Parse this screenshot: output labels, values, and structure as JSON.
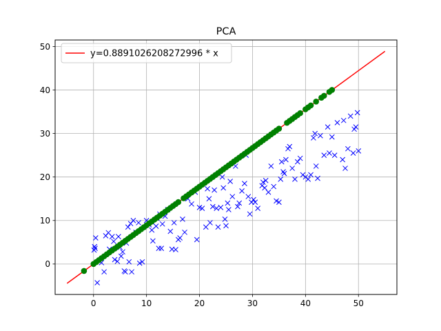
{
  "chart_data": {
    "type": "scatter",
    "title": "PCA",
    "xlabel": "",
    "ylabel": "",
    "xlim": [
      -7.25,
      57.25
    ],
    "ylim": [
      -7.0,
      51.5
    ],
    "xticks": [
      0,
      10,
      20,
      30,
      40,
      50
    ],
    "yticks": [
      0,
      10,
      20,
      30,
      40,
      50
    ],
    "grid": true,
    "legend_position": "top-left",
    "series": [
      {
        "name": "y=0.8891026208272996 * x",
        "kind": "line",
        "color": "#ff0000",
        "x": [
          -5,
          55
        ],
        "y": [
          -4.45,
          48.9
        ]
      },
      {
        "name": "",
        "kind": "scatter",
        "marker": "x",
        "color": "#0000ff",
        "points": [
          [
            0.1,
            3.2
          ],
          [
            0.2,
            4.0
          ],
          [
            0.3,
            3.6
          ],
          [
            0.4,
            6.0
          ],
          [
            0.7,
            -4.3
          ],
          [
            1.5,
            0.3
          ],
          [
            2.0,
            -1.8
          ],
          [
            2.3,
            6.5
          ],
          [
            2.8,
            7.2
          ],
          [
            3.0,
            3.4
          ],
          [
            3.5,
            6.3
          ],
          [
            3.8,
            5.2
          ],
          [
            4.0,
            1.0
          ],
          [
            4.5,
            0.6
          ],
          [
            4.7,
            6.3
          ],
          [
            5.0,
            3.8
          ],
          [
            5.2,
            1.8
          ],
          [
            5.5,
            2.8
          ],
          [
            5.8,
            -1.6
          ],
          [
            6.0,
            -1.8
          ],
          [
            6.2,
            4.8
          ],
          [
            6.5,
            8.5
          ],
          [
            6.7,
            0.5
          ],
          [
            7.0,
            9.3
          ],
          [
            7.2,
            -1.8
          ],
          [
            7.5,
            10.0
          ],
          [
            8.0,
            7.3
          ],
          [
            8.5,
            9.5
          ],
          [
            8.7,
            0.2
          ],
          [
            9.2,
            0.5
          ],
          [
            10.0,
            10.0
          ],
          [
            10.5,
            9.0
          ],
          [
            11.0,
            7.8
          ],
          [
            11.2,
            5.3
          ],
          [
            11.8,
            8.7
          ],
          [
            12.0,
            10.5
          ],
          [
            12.3,
            3.6
          ],
          [
            12.5,
            11.5
          ],
          [
            12.8,
            3.6
          ],
          [
            13.0,
            9.2
          ],
          [
            13.5,
            11.0
          ],
          [
            14.0,
            12.5
          ],
          [
            14.5,
            7.5
          ],
          [
            14.8,
            3.4
          ],
          [
            15.2,
            9.5
          ],
          [
            15.5,
            3.3
          ],
          [
            16.0,
            5.6
          ],
          [
            16.3,
            6.0
          ],
          [
            16.8,
            10.3
          ],
          [
            17.2,
            7.3
          ],
          [
            17.8,
            15.0
          ],
          [
            18.5,
            13.8
          ],
          [
            19.2,
            16.5
          ],
          [
            19.5,
            5.6
          ],
          [
            20.0,
            13.0
          ],
          [
            20.5,
            12.8
          ],
          [
            21.2,
            8.5
          ],
          [
            21.5,
            17.3
          ],
          [
            21.8,
            15.0
          ],
          [
            22.0,
            9.5
          ],
          [
            22.5,
            13.2
          ],
          [
            22.8,
            17.0
          ],
          [
            23.2,
            12.8
          ],
          [
            23.5,
            8.5
          ],
          [
            24.0,
            13.0
          ],
          [
            24.3,
            20.0
          ],
          [
            24.5,
            17.5
          ],
          [
            24.8,
            10.3
          ],
          [
            25.0,
            8.8
          ],
          [
            25.3,
            14.0
          ],
          [
            25.5,
            12.5
          ],
          [
            25.8,
            19.0
          ],
          [
            26.2,
            15.5
          ],
          [
            26.8,
            22.5
          ],
          [
            27.2,
            13.2
          ],
          [
            27.5,
            14.0
          ],
          [
            28.0,
            16.8
          ],
          [
            28.5,
            18.5
          ],
          [
            28.8,
            25.0
          ],
          [
            29.2,
            15.5
          ],
          [
            29.5,
            11.5
          ],
          [
            29.8,
            14.2
          ],
          [
            30.2,
            14.8
          ],
          [
            30.5,
            14.2
          ],
          [
            31.0,
            12.8
          ],
          [
            31.8,
            18.0
          ],
          [
            32.0,
            18.8
          ],
          [
            32.3,
            17.5
          ],
          [
            32.5,
            19.2
          ],
          [
            33.0,
            16.5
          ],
          [
            33.5,
            22.5
          ],
          [
            34.0,
            17.8
          ],
          [
            34.5,
            14.5
          ],
          [
            35.0,
            14.2
          ],
          [
            35.3,
            19.5
          ],
          [
            35.5,
            23.5
          ],
          [
            35.8,
            21.2
          ],
          [
            36.0,
            20.8
          ],
          [
            36.3,
            24.0
          ],
          [
            36.7,
            26.5
          ],
          [
            37.0,
            27.0
          ],
          [
            37.5,
            22.0
          ],
          [
            38.0,
            19.5
          ],
          [
            38.5,
            23.5
          ],
          [
            39.0,
            24.3
          ],
          [
            39.5,
            20.5
          ],
          [
            40.0,
            20.0
          ],
          [
            40.5,
            19.5
          ],
          [
            41.0,
            20.5
          ],
          [
            41.5,
            29.0
          ],
          [
            41.8,
            30.0
          ],
          [
            42.0,
            22.5
          ],
          [
            42.3,
            19.7
          ],
          [
            42.8,
            29.5
          ],
          [
            43.5,
            25.0
          ],
          [
            44.2,
            31.5
          ],
          [
            44.5,
            25.5
          ],
          [
            45.0,
            29.2
          ],
          [
            45.5,
            25.0
          ],
          [
            46.0,
            32.5
          ],
          [
            47.0,
            24.0
          ],
          [
            47.2,
            33.0
          ],
          [
            47.5,
            22.0
          ],
          [
            48.0,
            26.5
          ],
          [
            48.5,
            34.0
          ],
          [
            49.0,
            25.5
          ],
          [
            49.2,
            31.0
          ],
          [
            49.5,
            31.5
          ],
          [
            49.8,
            34.8
          ],
          [
            50.0,
            26.0
          ]
        ]
      },
      {
        "name": "",
        "kind": "scatter",
        "marker": "circle",
        "color": "#008000",
        "x": [
          -1.8,
          0.0,
          0.5,
          1.0,
          1.5,
          2.0,
          2.5,
          3.0,
          3.5,
          4.0,
          4.5,
          5.0,
          5.5,
          6.0,
          6.5,
          7.0,
          7.5,
          8.0,
          8.5,
          9.0,
          9.5,
          10.0,
          10.5,
          11.0,
          11.5,
          12.0,
          12.5,
          13.0,
          13.5,
          14.0,
          14.5,
          15.0,
          15.5,
          16.0,
          17.0,
          17.5,
          18.0,
          18.5,
          19.0,
          19.5,
          20.0,
          20.5,
          21.0,
          21.5,
          22.0,
          22.5,
          23.0,
          23.5,
          24.0,
          24.5,
          25.0,
          25.5,
          26.0,
          26.5,
          27.0,
          27.5,
          28.0,
          28.5,
          29.0,
          29.5,
          30.0,
          30.5,
          31.0,
          31.5,
          32.0,
          32.5,
          33.0,
          33.5,
          34.0,
          34.5,
          35.0,
          36.5,
          37.0,
          37.5,
          38.0,
          38.5,
          39.0,
          40.0,
          40.5,
          41.0,
          42.0,
          43.0,
          43.5,
          44.5,
          45.0
        ]
      }
    ]
  }
}
